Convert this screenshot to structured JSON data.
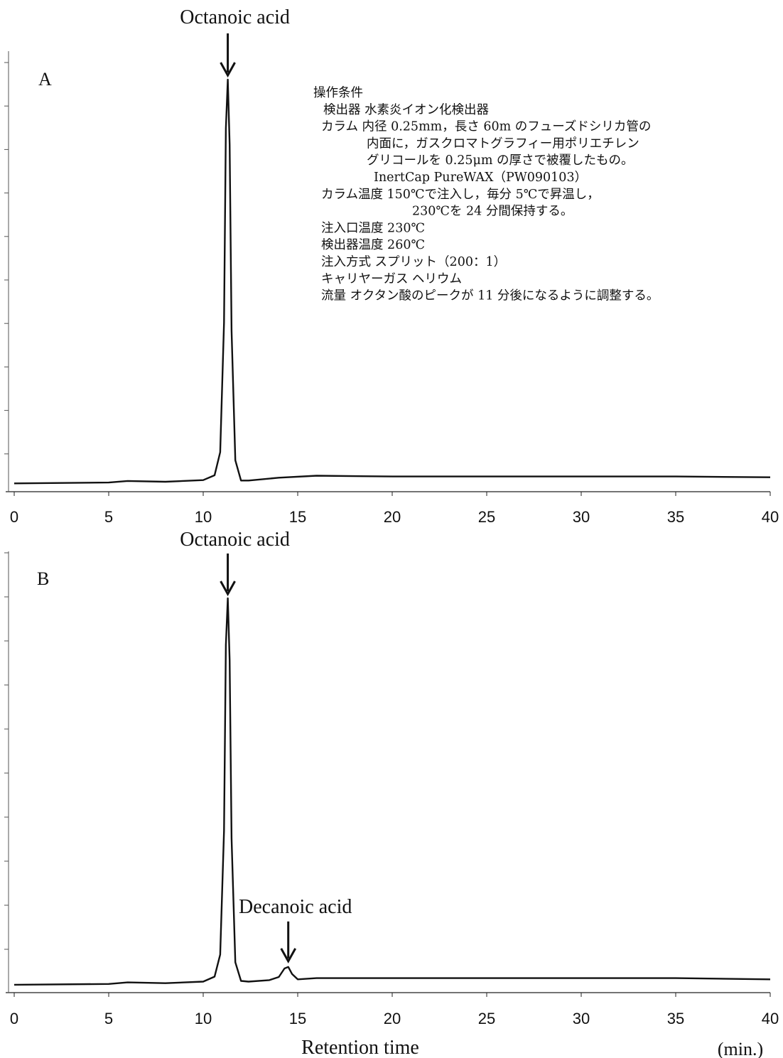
{
  "chart_data": [
    {
      "type": "line",
      "panel_label": "A",
      "peak_labels": [
        {
          "text": "Octanoic acid",
          "x": 11.3
        }
      ],
      "x_ticks": [
        "0",
        "5",
        "10",
        "15",
        "20",
        "25",
        "30",
        "35",
        "40"
      ],
      "xlim": [
        0,
        40
      ],
      "ylim": [
        0,
        100
      ],
      "series": [
        {
          "x": [
            0,
            5,
            6,
            8,
            10,
            10.6,
            10.9,
            11.1,
            11.2,
            11.3,
            11.4,
            11.5,
            11.7,
            12.0,
            12.4,
            14,
            16,
            20,
            25,
            30,
            35,
            40
          ],
          "y": [
            0.3,
            0.5,
            0.9,
            0.7,
            1.1,
            2.3,
            8.0,
            40.0,
            88.0,
            100.0,
            84.0,
            38.0,
            6.0,
            1.0,
            1.0,
            1.7,
            2.2,
            2.0,
            2.0,
            2.0,
            2.0,
            1.8
          ]
        }
      ],
      "conditions": [
        "操作条件",
        "検出器 水素炎イオン化検出器",
        "カラム 内径 0.25mm，長さ 60m のフューズドシリカ管の",
        "内面に，ガスクロマトグラフィー用ポリエチレン",
        "グリコールを 0.25μm の厚さで被覆したもの。",
        "InertCap PureWAX（PW090103）",
        "カラム温度 150℃で注入し，毎分 5℃で昇温し，",
        "230℃を 24 分間保持する。",
        "注入口温度 230℃",
        "検出器温度 260℃",
        "注入方式 スプリット（200：1）",
        "キャリヤーガス ヘリウム",
        "流量 オクタン酸のピークが 11 分後になるように調整する。"
      ]
    },
    {
      "type": "line",
      "panel_label": "B",
      "peak_labels": [
        {
          "text": "Octanoic acid",
          "x": 11.3
        },
        {
          "text": "Decanoic acid",
          "x": 14.5
        }
      ],
      "x_ticks": [
        "0",
        "5",
        "10",
        "15",
        "20",
        "25",
        "30",
        "35",
        "40"
      ],
      "xlim": [
        0,
        40
      ],
      "ylim": [
        0,
        100
      ],
      "xlabel": "Retention time",
      "unit": "(min.)",
      "series": [
        {
          "x": [
            0,
            5,
            6,
            8,
            10,
            10.6,
            10.9,
            11.1,
            11.2,
            11.3,
            11.4,
            11.5,
            11.7,
            12.0,
            12.4,
            13.5,
            14.0,
            14.3,
            14.5,
            14.7,
            15.0,
            16,
            20,
            25,
            30,
            35,
            40
          ],
          "y": [
            0.2,
            0.4,
            0.8,
            0.6,
            1.0,
            2.3,
            8.0,
            40.0,
            88.0,
            100.0,
            84.0,
            38.0,
            6.0,
            1.2,
            1.0,
            1.4,
            2.2,
            4.4,
            4.8,
            3.0,
            1.6,
            1.9,
            1.9,
            1.9,
            1.9,
            1.9,
            1.6
          ]
        }
      ]
    }
  ]
}
